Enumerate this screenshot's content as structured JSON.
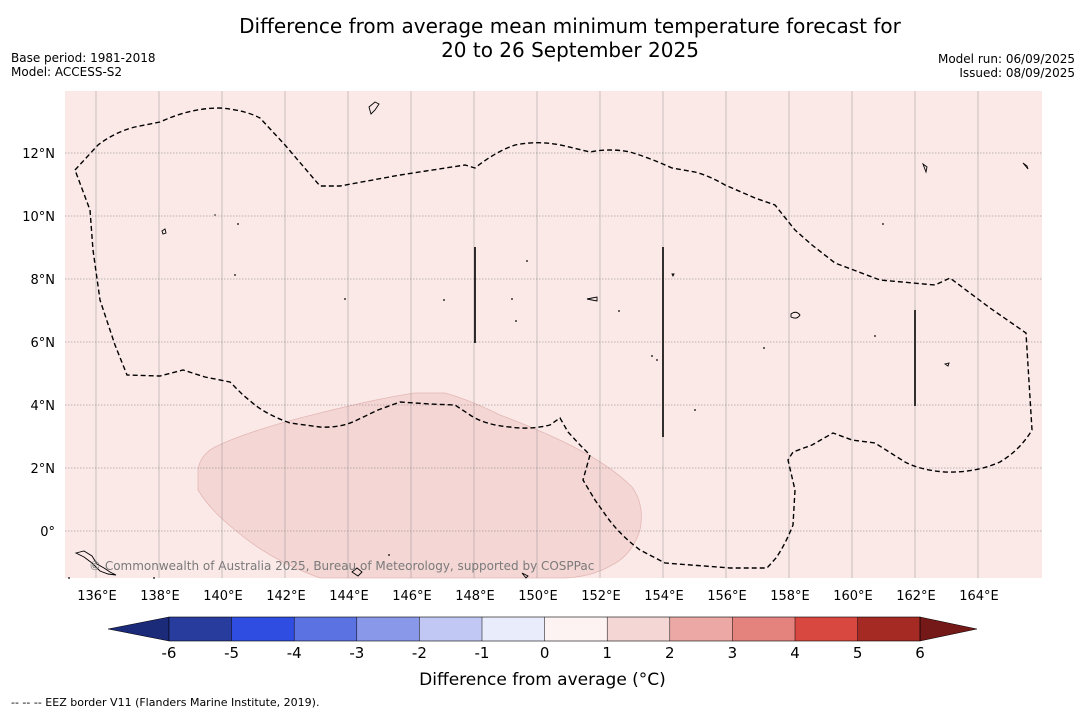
{
  "title_line1": "Difference from average mean minimum temperature forecast for",
  "title_line2": "20 to 26 September 2025",
  "base_period": "Base period: 1981-2018",
  "model": "Model: ACCESS-S2",
  "model_run": "Model run: 06/09/2025",
  "issued": "Issued: 08/09/2025",
  "copyright": "© Commonwealth of Australia 2025, Bureau of Meteorology, supported by COSPPac",
  "colorbar_title": "Difference from average (°C)",
  "footnote": "-- -- -- EEZ border V11 (Flanders Marine Institute, 2019).",
  "colors": {
    "background_anomaly": "#fbe9e8",
    "anomaly_1_2": "#f4d6d4",
    "land_outline": "#000000"
  },
  "map": {
    "lon_ticks": [
      "136°E",
      "138°E",
      "140°E",
      "142°E",
      "144°E",
      "146°E",
      "148°E",
      "150°E",
      "152°E",
      "154°E",
      "156°E",
      "158°E",
      "160°E",
      "162°E",
      "164°E"
    ],
    "lat_ticks": [
      "12°N",
      "10°N",
      "8°N",
      "6°N",
      "4°N",
      "2°N",
      "0°"
    ]
  },
  "colorbar": {
    "labels": [
      "-6",
      "-5",
      "-4",
      "-3",
      "-2",
      "-1",
      "0",
      "1",
      "2",
      "3",
      "4",
      "5",
      "6"
    ],
    "colors": [
      "#283c9e",
      "#2f4de0",
      "#5b72e3",
      "#8a98ea",
      "#c1c8f4",
      "#e9ecfb",
      "#fdf3f2",
      "#f4d6d4",
      "#eba8a4",
      "#e4837d",
      "#d94840",
      "#a62a24"
    ],
    "extend_low": "#1c2a7a",
    "extend_high": "#741818"
  }
}
